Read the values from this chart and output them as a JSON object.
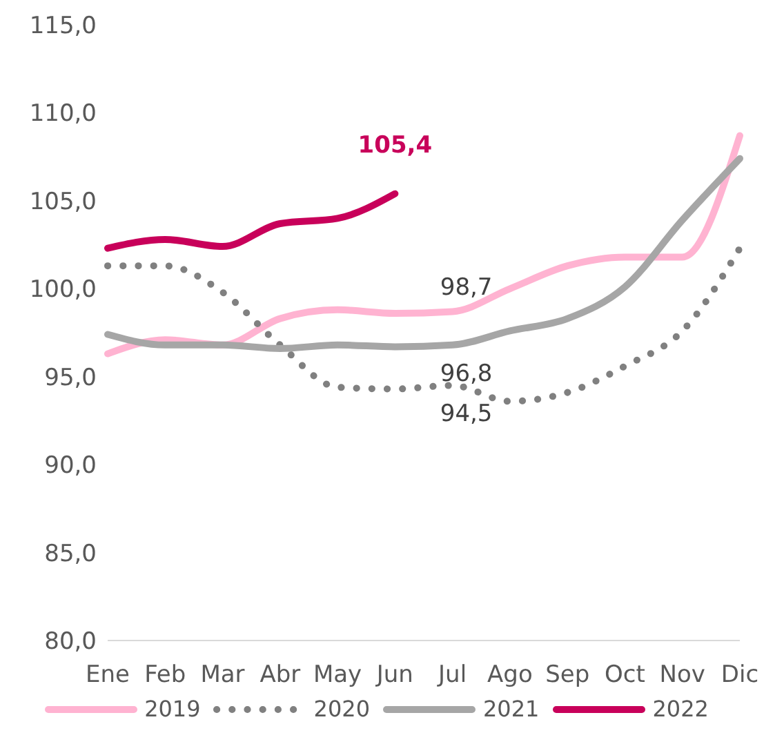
{
  "chart_data": {
    "type": "line",
    "categories": [
      "Ene",
      "Feb",
      "Mar",
      "Abr",
      "May",
      "Jun",
      "Jul",
      "Ago",
      "Sep",
      "Oct",
      "Nov",
      "Dic"
    ],
    "series": [
      {
        "name": "2019",
        "color": "#ffb3d1",
        "line_style": "solid",
        "values": [
          96.3,
          97.1,
          96.8,
          98.3,
          98.8,
          98.6,
          98.7,
          100.0,
          101.3,
          101.8,
          101.8,
          108.7
        ],
        "value_labels": [
          null,
          null,
          null,
          null,
          null,
          null,
          "98,7",
          null,
          null,
          null,
          null,
          null
        ]
      },
      {
        "name": "2020",
        "color": "#808080",
        "line_style": "dotted",
        "values": [
          101.3,
          101.3,
          99.8,
          96.8,
          94.4,
          94.3,
          94.5,
          93.6,
          94.1,
          95.6,
          97.6,
          102.3
        ],
        "value_labels": [
          null,
          null,
          null,
          null,
          null,
          null,
          "94,5",
          null,
          null,
          null,
          null,
          null
        ]
      },
      {
        "name": "2021",
        "color": "#a6a6a6",
        "line_style": "solid",
        "values": [
          97.4,
          96.8,
          96.8,
          96.6,
          96.8,
          96.7,
          96.8,
          97.6,
          98.3,
          100.1,
          103.9,
          107.4
        ],
        "value_labels": [
          null,
          null,
          null,
          null,
          null,
          null,
          "96,8",
          null,
          null,
          null,
          null,
          null
        ]
      },
      {
        "name": "2022",
        "color": "#c8005a",
        "line_style": "solid",
        "values": [
          102.3,
          102.8,
          102.4,
          103.7,
          104.0,
          105.4,
          null,
          null,
          null,
          null,
          null,
          null
        ],
        "value_labels": [
          null,
          null,
          null,
          null,
          null,
          "105,4",
          null,
          null,
          null,
          null,
          null,
          null
        ]
      }
    ],
    "ylim": [
      80,
      115
    ],
    "yticks": [
      {
        "value": 80,
        "label": "80,0"
      },
      {
        "value": 85,
        "label": "85,0"
      },
      {
        "value": 90,
        "label": "90,0"
      },
      {
        "value": 95,
        "label": "95,0"
      },
      {
        "value": 100,
        "label": "100,0"
      },
      {
        "value": 105,
        "label": "105,0"
      },
      {
        "value": 110,
        "label": "110,0"
      },
      {
        "value": 115,
        "label": "115,0"
      }
    ],
    "grid": false,
    "legend": "bottom",
    "marker": "none"
  }
}
